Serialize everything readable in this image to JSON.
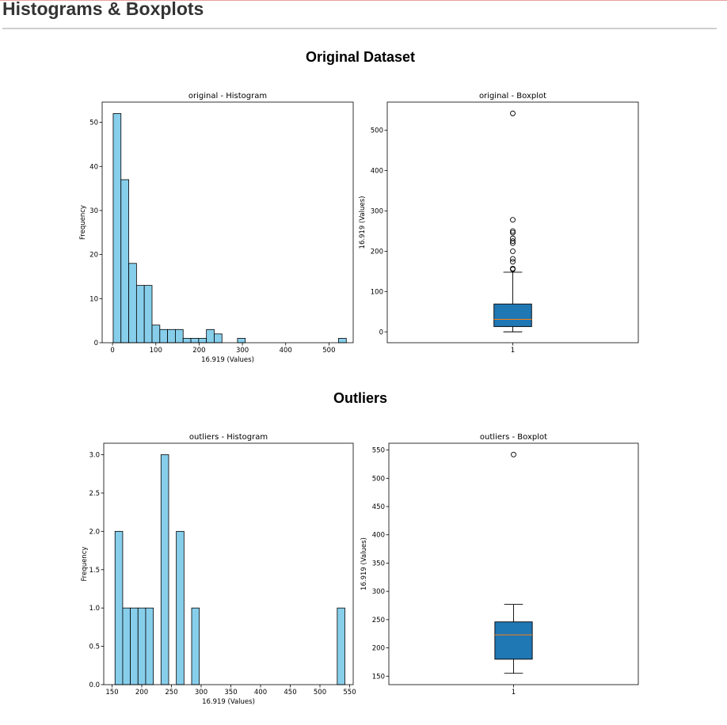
{
  "page": {
    "title": "Histograms & Boxplots"
  },
  "sections": [
    {
      "title": "Original Dataset"
    },
    {
      "title": "Outliers"
    }
  ],
  "chart_data": [
    {
      "type": "bar",
      "title": "original - Histogram",
      "xlabel": "16.919 (Values)",
      "ylabel": "Frequency",
      "bins": {
        "start": 1.5,
        "width": 17.95,
        "count": 30
      },
      "values": [
        52,
        37,
        18,
        13,
        13,
        4,
        3,
        3,
        3,
        1,
        1,
        1,
        3,
        2,
        0,
        0,
        1,
        0,
        0,
        0,
        0,
        0,
        0,
        0,
        0,
        0,
        0,
        0,
        0,
        1
      ],
      "xlim": [
        -24,
        556
      ],
      "ylim": [
        0,
        54.6
      ],
      "xticks": [
        0,
        100,
        200,
        300,
        400,
        500
      ],
      "yticks": [
        0,
        10,
        20,
        30,
        40,
        50
      ],
      "bar_color": "#87ceeb",
      "edge_color": "#000000"
    },
    {
      "type": "boxplot",
      "title": "original - Boxplot",
      "xlabel": "",
      "ylabel": "16.919 (Values)",
      "category": "1",
      "whisker_low": 0,
      "q1": 13,
      "median": 31,
      "q3": 69,
      "whisker_high": 148,
      "outliers": [
        155,
        157,
        174,
        181,
        200,
        220,
        225,
        232,
        246,
        250,
        278,
        542
      ],
      "ylim": [
        -27,
        570
      ],
      "yticks": [
        0,
        100,
        200,
        300,
        400,
        500
      ],
      "box_color": "#1f77b4",
      "median_color": "#ff7f0e"
    },
    {
      "type": "bar",
      "title": "outliers - Histogram",
      "xlabel": "16.919 (Values)",
      "ylabel": "Frequency",
      "bins": {
        "start": 155,
        "width": 12.9,
        "count": 30
      },
      "values": [
        2,
        1,
        1,
        1,
        1,
        0,
        3,
        0,
        2,
        0,
        1,
        0,
        0,
        0,
        0,
        0,
        0,
        0,
        0,
        0,
        0,
        0,
        0,
        0,
        0,
        0,
        0,
        0,
        0,
        1
      ],
      "xlim": [
        136,
        556
      ],
      "ylim": [
        0,
        3.15
      ],
      "xticks": [
        150,
        200,
        250,
        300,
        350,
        400,
        450,
        500,
        550
      ],
      "yticks": [
        0.0,
        0.5,
        1.0,
        1.5,
        2.0,
        2.5,
        3.0
      ],
      "bar_color": "#87ceeb",
      "edge_color": "#000000"
    },
    {
      "type": "boxplot",
      "title": "outliers - Boxplot",
      "xlabel": "",
      "ylabel": "16.919 (Values)",
      "category": "1",
      "whisker_low": 155,
      "q1": 180,
      "median": 223,
      "q3": 246,
      "whisker_high": 277,
      "outliers": [
        542
      ],
      "ylim": [
        135,
        562
      ],
      "yticks": [
        150,
        200,
        250,
        300,
        350,
        400,
        450,
        500,
        550
      ],
      "box_color": "#1f77b4",
      "median_color": "#ff7f0e"
    }
  ]
}
